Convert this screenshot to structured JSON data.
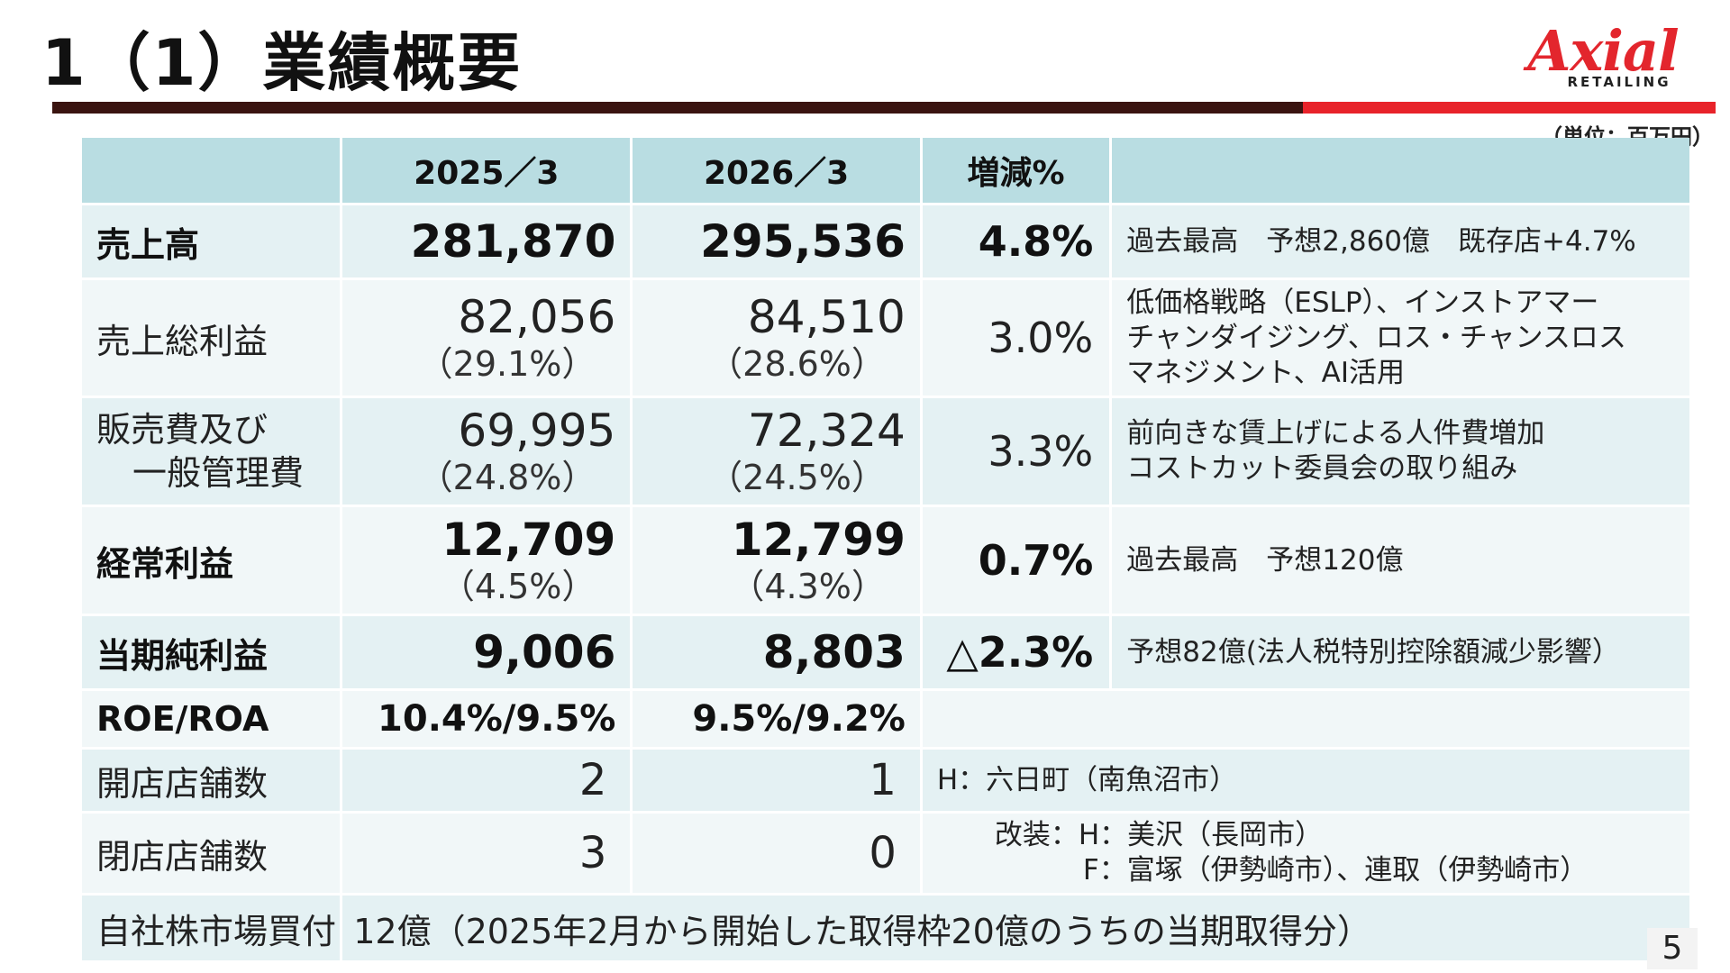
{
  "title": "1（1）業績概要",
  "logo": {
    "main": "Axial",
    "sub": "RETAILING"
  },
  "unit_note": "（単位：百万円）",
  "page_number": "5",
  "accent_colors": {
    "dark_bar": "#3a1410",
    "red_bar": "#e8232a",
    "header_bg": "#b9dde2"
  },
  "table": {
    "headers": [
      "",
      "2025／3",
      "2026／3",
      "増減%",
      ""
    ],
    "rows": [
      {
        "label": "売上高",
        "prev": "281,870",
        "prev_pct": "",
        "curr": "295,536",
        "curr_pct": "",
        "change": "4.8%",
        "note": [
          "過去最高　予想2,860億　既存店+4.7%"
        ]
      },
      {
        "label": "売上総利益",
        "prev": "82,056",
        "prev_pct": "（29.1%）",
        "curr": "84,510",
        "curr_pct": "（28.6%）",
        "change": "3.0%",
        "note": [
          "低価格戦略（ESLP）、インストアマー",
          "チャンダイジング、ロス・チャンスロス",
          "マネジメント、AI活用"
        ]
      },
      {
        "label_line1": "販売費及び",
        "label_line2": "一般管理費",
        "prev": "69,995",
        "prev_pct": "（24.8%）",
        "curr": "72,324",
        "curr_pct": "（24.5%）",
        "change": "3.3%",
        "note": [
          "前向きな賃上げによる人件費増加",
          "コストカット委員会の取り組み"
        ]
      },
      {
        "label": "経常利益",
        "prev": "12,709",
        "prev_pct": "（4.5%）",
        "curr": "12,799",
        "curr_pct": "（4.3%）",
        "change": "0.7%",
        "note": [
          "過去最高　予想120億"
        ]
      },
      {
        "label": "当期純利益",
        "prev": "9,006",
        "prev_pct": "",
        "curr": "8,803",
        "curr_pct": "",
        "change": "△2.3%",
        "note": [
          "予想82億(法人税特別控除額減少影響）"
        ]
      }
    ],
    "roe_roa": {
      "label": "ROE/ROA",
      "prev": "10.4%/9.5%",
      "curr": "9.5%/9.2%"
    },
    "store_openings": {
      "label": "開店店舗数",
      "prev": "2",
      "curr": "1",
      "note": "H：六日町（南魚沼市）"
    },
    "store_closings": {
      "label": "閉店店舗数",
      "prev": "3",
      "curr": "0",
      "note_line1": "改装：H：美沢（長岡市）",
      "note_line2": "F：富塚（伊勢崎市）、連取（伊勢崎市）"
    },
    "buyback": {
      "label": "自社株市場買付",
      "text": "12億（2025年2月から開始した取得枠20億のうちの当期取得分）"
    }
  }
}
